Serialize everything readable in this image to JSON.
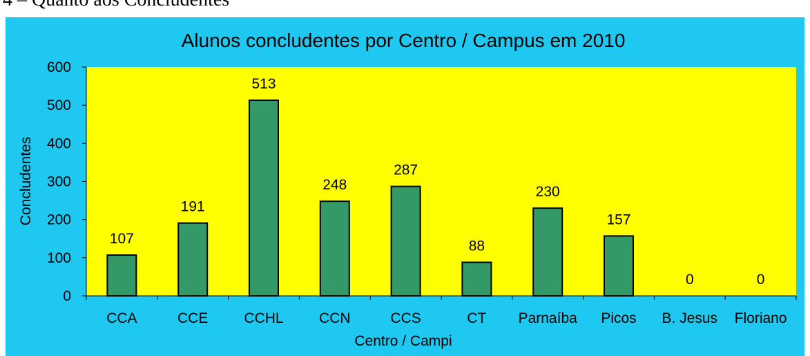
{
  "heading": "4 – Quanto aos Concludentes",
  "chart_data": {
    "type": "bar",
    "title": "Alunos concludentes por Centro / Campus em 2010",
    "x_label": "Centro / Campi",
    "y_label": "Concludentes",
    "categories": [
      "CCA",
      "CCE",
      "CCHL",
      "CCN",
      "CCS",
      "CT",
      "Parnaíba",
      "Picos",
      "B. Jesus",
      "Floriano"
    ],
    "values": [
      107,
      191,
      513,
      248,
      287,
      88,
      230,
      157,
      0,
      0
    ],
    "color": "#339966",
    "ylim": [
      0,
      600
    ],
    "yticks": [
      0,
      100,
      200,
      300,
      400,
      500,
      600
    ],
    "grid": false
  }
}
